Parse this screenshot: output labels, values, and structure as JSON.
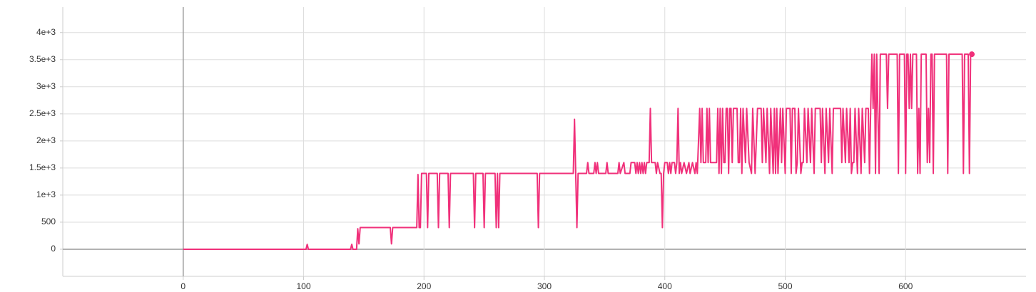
{
  "chart_data": {
    "type": "line",
    "x": [
      0,
      102,
      103,
      104,
      139,
      140,
      141,
      144,
      145,
      146,
      147,
      172,
      173,
      174,
      194,
      195,
      196,
      197,
      198,
      202,
      203,
      204,
      211,
      212,
      213,
      220,
      221,
      222,
      241,
      242,
      243,
      249,
      250,
      251,
      259,
      260,
      261,
      262,
      263,
      294,
      295,
      296,
      324,
      325,
      326,
      327,
      328,
      335,
      336,
      337,
      341,
      342,
      343,
      344,
      345,
      351,
      352,
      353,
      361,
      362,
      363,
      366,
      367,
      371,
      372,
      375,
      376,
      377,
      378,
      379,
      380,
      381,
      382,
      383,
      384,
      385,
      387,
      388,
      389,
      392,
      393,
      394,
      396,
      397,
      398,
      399,
      400,
      402,
      403,
      404,
      405,
      406,
      408,
      409,
      410,
      411,
      412,
      413,
      414,
      416,
      418,
      420,
      421,
      423,
      425,
      426,
      427,
      429,
      430,
      431,
      432,
      434,
      435,
      436,
      437,
      438,
      443,
      444,
      445,
      446,
      447,
      448,
      449,
      450,
      451,
      452,
      453,
      454,
      455,
      456,
      457,
      460,
      461,
      462,
      463,
      464,
      465,
      467,
      468,
      470,
      472,
      473,
      475,
      477,
      480,
      481,
      482,
      484,
      485,
      487,
      488,
      490,
      491,
      492,
      493,
      494,
      496,
      497,
      498,
      500,
      501,
      504,
      505,
      506,
      508,
      509,
      510,
      511,
      513,
      514,
      515,
      516,
      518,
      519,
      521,
      522,
      524,
      525,
      529,
      530,
      531,
      533,
      534,
      536,
      537,
      539,
      540,
      546,
      547,
      548,
      550,
      551,
      553,
      554,
      555,
      556,
      557,
      558,
      560,
      561,
      563,
      564,
      566,
      567,
      569,
      570,
      571,
      572,
      573,
      574,
      575,
      576,
      578,
      579,
      584,
      585,
      586,
      593,
      594,
      595,
      599,
      600,
      601,
      602,
      603,
      604,
      605,
      606,
      609,
      610,
      611,
      612,
      613,
      617,
      618,
      619,
      620,
      621,
      622,
      623,
      624,
      634,
      635,
      636,
      647,
      648,
      649,
      652,
      653,
      654,
      655
    ],
    "series": [
      {
        "color": "#f0307a",
        "values": [
          0,
          0,
          90,
          0,
          0,
          90,
          0,
          0,
          380,
          100,
          400,
          400,
          100,
          400,
          400,
          1380,
          400,
          400,
          1400,
          1400,
          400,
          1400,
          1400,
          400,
          1400,
          1400,
          400,
          1400,
          1400,
          400,
          1400,
          1400,
          400,
          1400,
          1400,
          400,
          1400,
          400,
          1400,
          1400,
          400,
          1400,
          1400,
          2400,
          1400,
          400,
          1400,
          1400,
          1600,
          1400,
          1400,
          1600,
          1400,
          1600,
          1400,
          1400,
          1600,
          1400,
          1400,
          1600,
          1400,
          1600,
          1400,
          1400,
          1600,
          1600,
          1400,
          1600,
          1400,
          1600,
          1400,
          1600,
          1400,
          1600,
          1400,
          1600,
          1600,
          2600,
          1600,
          1600,
          1400,
          1600,
          1400,
          1400,
          400,
          1400,
          1600,
          1600,
          1400,
          1600,
          1400,
          1600,
          1600,
          1400,
          1600,
          2600,
          1400,
          1600,
          1400,
          1600,
          1400,
          1600,
          1400,
          1600,
          1400,
          1600,
          1400,
          2600,
          1600,
          2600,
          1600,
          1600,
          2600,
          1600,
          2600,
          1600,
          1600,
          2600,
          1400,
          2600,
          1400,
          2600,
          1600,
          1600,
          2600,
          2600,
          1400,
          2600,
          2600,
          1600,
          2600,
          2600,
          1600,
          1600,
          2600,
          1400,
          2600,
          1600,
          2600,
          1600,
          1400,
          2600,
          1400,
          2600,
          2600,
          1600,
          2600,
          1600,
          2600,
          1400,
          2600,
          1400,
          2600,
          1400,
          2600,
          1400,
          2600,
          1600,
          2600,
          1400,
          2600,
          2600,
          1400,
          2600,
          2600,
          1400,
          1600,
          2600,
          1400,
          1600,
          1600,
          2600,
          1600,
          2600,
          1600,
          2600,
          1400,
          2600,
          2600,
          1600,
          2600,
          1400,
          2600,
          1600,
          2600,
          1400,
          2600,
          2600,
          1600,
          2600,
          1600,
          2600,
          1600,
          2600,
          1400,
          1600,
          1600,
          2600,
          1400,
          2600,
          1400,
          2600,
          1600,
          2600,
          2600,
          1400,
          2600,
          3600,
          2600,
          3600,
          1400,
          3600,
          1400,
          3600,
          3600,
          2600,
          3600,
          3600,
          1400,
          3600,
          3600,
          1400,
          3600,
          3600,
          2600,
          3600,
          2600,
          3600,
          3600,
          1400,
          2600,
          1400,
          3600,
          3600,
          1600,
          2600,
          1600,
          3600,
          3600,
          1400,
          3600,
          3600,
          1400,
          3600,
          3600,
          1400,
          3600,
          3600,
          1400,
          3600,
          3600
        ]
      }
    ],
    "xlim": [
      -100,
      700
    ],
    "ylim": [
      -500,
      4470
    ],
    "xticks": [
      0,
      100,
      200,
      300,
      400,
      500,
      600
    ],
    "yticks": [
      0,
      500,
      {
        "value": 1000,
        "label": "1e+3"
      },
      {
        "value": 1500,
        "label": "1.5e+3"
      },
      {
        "value": 2000,
        "label": "2e+3"
      },
      {
        "value": 2500,
        "label": "2.5e+3"
      },
      {
        "value": 3000,
        "label": "3e+3"
      },
      {
        "value": 3500,
        "label": "3.5e+3"
      },
      {
        "value": 4000,
        "label": "4e+3"
      }
    ],
    "grid": true
  }
}
